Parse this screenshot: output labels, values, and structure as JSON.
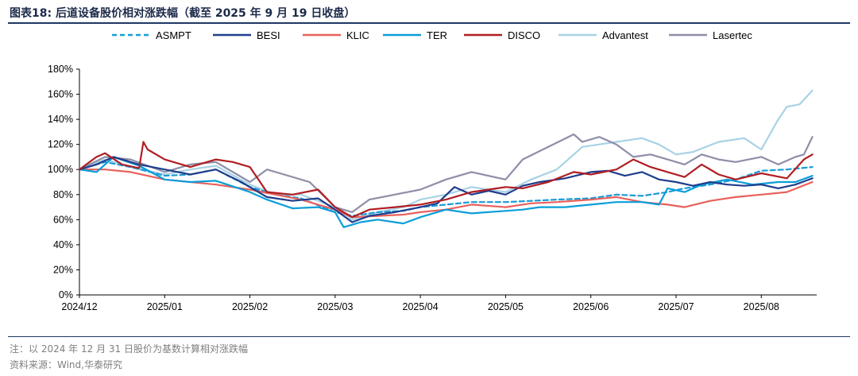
{
  "header": {
    "title": "图表18:  后道设备股价相对涨跌幅（截至 2025 年 9 月 19 日收盘）"
  },
  "footer": {
    "note": "注：以 2024 年 12 月 31 日股价为基数计算相对涨跌幅",
    "source": "资料来源：Wind,华泰研究"
  },
  "chart_data": {
    "type": "line",
    "title": "",
    "xlabel": "",
    "ylabel": "",
    "ylim": [
      0,
      180
    ],
    "yticks": [
      "0%",
      "20%",
      "40%",
      "60%",
      "80%",
      "100%",
      "120%",
      "140%",
      "160%",
      "180%"
    ],
    "xlim": [
      0,
      8.65
    ],
    "x_ticks": [
      "2024/12",
      "2025/01",
      "2025/02",
      "2025/03",
      "2025/04",
      "2025/05",
      "2025/06",
      "2025/07",
      "2025/08"
    ],
    "legend_position": "top",
    "series": [
      {
        "name": "ASMPT",
        "color": "#1a9bd7",
        "dash": true,
        "x": [
          0,
          0.3,
          0.6,
          1.0,
          1.3,
          1.6,
          2.0,
          2.3,
          2.6,
          3.0,
          3.2,
          3.5,
          3.8,
          4.0,
          4.3,
          4.6,
          5.0,
          5.3,
          5.6,
          6.0,
          6.3,
          6.6,
          6.9,
          7.1,
          7.4,
          7.7,
          8.0,
          8.3,
          8.6
        ],
        "y": [
          100,
          106,
          102,
          95,
          96,
          100,
          86,
          80,
          77,
          66,
          63,
          66,
          67,
          70,
          72,
          74,
          74,
          75,
          76,
          77,
          80,
          79,
          82,
          85,
          88,
          92,
          99,
          100,
          102
        ]
      },
      {
        "name": "BESI",
        "color": "#1f3d8c",
        "dash": false,
        "x": [
          0,
          0.2,
          0.4,
          0.7,
          1.0,
          1.3,
          1.6,
          1.9,
          2.2,
          2.5,
          2.8,
          3.0,
          3.2,
          3.4,
          3.7,
          4.0,
          4.2,
          4.4,
          4.6,
          4.8,
          5.0,
          5.2,
          5.4,
          5.7,
          6.0,
          6.2,
          6.4,
          6.6,
          6.8,
          7.0,
          7.2,
          7.4,
          7.6,
          7.8,
          8.0,
          8.2,
          8.4,
          8.6
        ],
        "y": [
          100,
          104,
          110,
          104,
          100,
          96,
          100,
          90,
          78,
          75,
          77,
          68,
          58,
          63,
          66,
          70,
          73,
          86,
          80,
          83,
          80,
          87,
          90,
          93,
          98,
          99,
          95,
          98,
          92,
          90,
          87,
          90,
          88,
          87,
          88,
          85,
          88,
          93
        ]
      },
      {
        "name": "KLIC",
        "color": "#e8615c",
        "dash": false,
        "x": [
          0,
          0.3,
          0.6,
          1.0,
          1.3,
          1.6,
          2.0,
          2.3,
          2.6,
          3.0,
          3.2,
          3.5,
          3.8,
          4.0,
          4.3,
          4.6,
          5.0,
          5.3,
          5.6,
          6.0,
          6.3,
          6.6,
          6.9,
          7.1,
          7.4,
          7.7,
          8.0,
          8.3,
          8.6
        ],
        "y": [
          100,
          100,
          98,
          92,
          90,
          88,
          84,
          80,
          76,
          68,
          62,
          63,
          64,
          66,
          68,
          72,
          70,
          73,
          74,
          76,
          78,
          74,
          72,
          70,
          75,
          78,
          80,
          82,
          90
        ]
      },
      {
        "name": "TER",
        "color": "#0a9ed9",
        "dash": false,
        "x": [
          0,
          0.2,
          0.4,
          0.7,
          1.0,
          1.3,
          1.6,
          2.0,
          2.2,
          2.5,
          2.8,
          3.0,
          3.1,
          3.3,
          3.5,
          3.8,
          4.0,
          4.3,
          4.6,
          5.0,
          5.2,
          5.4,
          5.7,
          6.0,
          6.3,
          6.6,
          6.8,
          6.9,
          7.1,
          7.3,
          7.6,
          7.9,
          8.2,
          8.4,
          8.6
        ],
        "y": [
          100,
          98,
          110,
          103,
          92,
          90,
          91,
          82,
          76,
          69,
          70,
          66,
          54,
          58,
          60,
          57,
          62,
          68,
          65,
          67,
          68,
          70,
          70,
          72,
          74,
          74,
          72,
          85,
          82,
          88,
          92,
          88,
          90,
          90,
          95
        ]
      },
      {
        "name": "DISCO",
        "color": "#b01e23",
        "dash": false,
        "x": [
          0,
          0.2,
          0.3,
          0.5,
          0.7,
          0.75,
          0.8,
          1.0,
          1.3,
          1.6,
          1.8,
          2.0,
          2.2,
          2.5,
          2.8,
          3.0,
          3.2,
          3.4,
          3.7,
          4.0,
          4.3,
          4.6,
          5.0,
          5.2,
          5.5,
          5.8,
          6.0,
          6.3,
          6.5,
          6.7,
          6.9,
          7.1,
          7.3,
          7.5,
          7.7,
          8.0,
          8.3,
          8.5,
          8.6
        ],
        "y": [
          100,
          110,
          113,
          104,
          101,
          122,
          116,
          108,
          102,
          108,
          106,
          102,
          82,
          80,
          84,
          70,
          62,
          68,
          70,
          72,
          76,
          82,
          86,
          85,
          90,
          98,
          96,
          100,
          108,
          102,
          98,
          94,
          104,
          96,
          92,
          97,
          93,
          108,
          112
        ]
      },
      {
        "name": "Advantest",
        "color": "#a9d2e5",
        "dash": false,
        "x": [
          0,
          0.3,
          0.6,
          1.0,
          1.3,
          1.6,
          2.0,
          2.3,
          2.6,
          3.0,
          3.2,
          3.5,
          3.8,
          4.0,
          4.3,
          4.6,
          5.0,
          5.3,
          5.6,
          5.9,
          6.1,
          6.3,
          6.6,
          6.8,
          7.0,
          7.2,
          7.5,
          7.8,
          8.0,
          8.2,
          8.3,
          8.45,
          8.6
        ],
        "y": [
          100,
          108,
          102,
          96,
          100,
          103,
          88,
          80,
          80,
          70,
          60,
          66,
          70,
          76,
          80,
          86,
          82,
          92,
          100,
          118,
          120,
          122,
          125,
          120,
          112,
          114,
          122,
          125,
          116,
          140,
          150,
          152,
          163
        ]
      },
      {
        "name": "Lasertec",
        "color": "#8e8ea8",
        "dash": false,
        "x": [
          0,
          0.3,
          0.6,
          1.0,
          1.3,
          1.6,
          2.0,
          2.2,
          2.4,
          2.7,
          3.0,
          3.2,
          3.4,
          3.7,
          4.0,
          4.3,
          4.6,
          5.0,
          5.2,
          5.5,
          5.8,
          5.9,
          6.1,
          6.3,
          6.5,
          6.7,
          6.9,
          7.1,
          7.3,
          7.5,
          7.7,
          8.0,
          8.2,
          8.4,
          8.5,
          8.6
        ],
        "y": [
          100,
          110,
          108,
          98,
          104,
          106,
          90,
          100,
          96,
          90,
          70,
          66,
          76,
          80,
          84,
          92,
          98,
          92,
          108,
          118,
          128,
          122,
          126,
          120,
          110,
          112,
          108,
          104,
          112,
          108,
          106,
          110,
          104,
          110,
          112,
          126
        ]
      }
    ]
  }
}
